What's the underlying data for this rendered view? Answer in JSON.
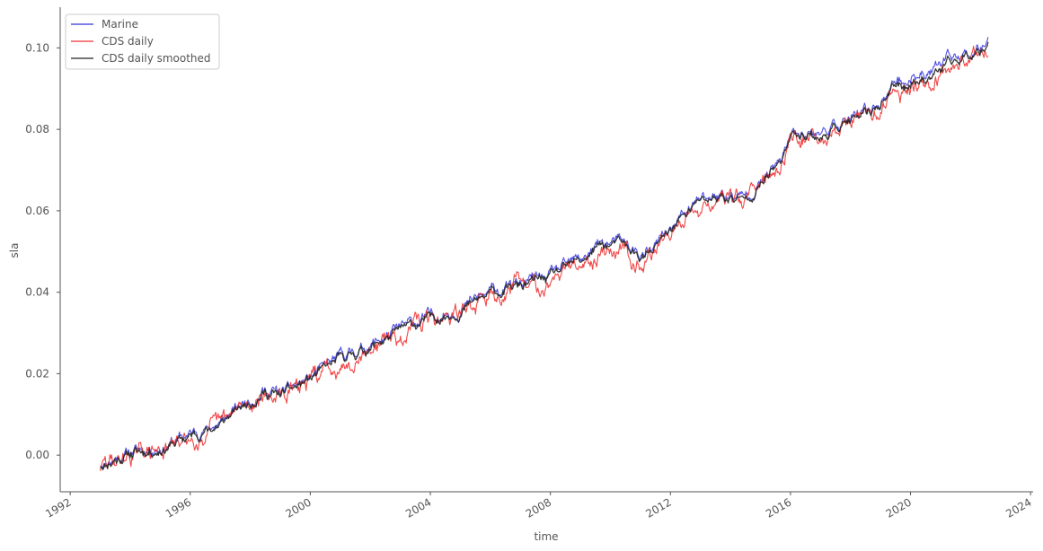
{
  "chart_data": {
    "type": "line",
    "xlabel": "time",
    "ylabel": "sla",
    "xlim": [
      "1991-09-01",
      "2024-02-01"
    ],
    "ylim": [
      -0.009,
      0.11
    ],
    "x_ticks": [
      "1992",
      "1996",
      "2000",
      "2004",
      "2008",
      "2012",
      "2016",
      "2020",
      "2024"
    ],
    "y_ticks": [
      "0.00",
      "0.02",
      "0.04",
      "0.06",
      "0.08",
      "0.10"
    ],
    "grid": false,
    "legend_position": "top-left",
    "series_x": [
      "1993-01-01",
      "1994-01-01",
      "1995-01-01",
      "1996-01-01",
      "1997-01-01",
      "1997-09-01",
      "1998-06-01",
      "1999-01-01",
      "2000-01-01",
      "2001-01-01",
      "2002-01-01",
      "2003-01-01",
      "2004-01-01",
      "2005-01-01",
      "2006-01-01",
      "2007-01-01",
      "2008-01-01",
      "2009-01-01",
      "2009-09-01",
      "2010-06-01",
      "2011-01-01",
      "2011-06-01",
      "2012-01-01",
      "2013-01-01",
      "2013-09-01",
      "2014-06-01",
      "2015-01-01",
      "2015-09-01",
      "2016-01-01",
      "2016-09-01",
      "2017-01-01",
      "2017-09-01",
      "2018-06-01",
      "2019-01-01",
      "2019-06-01",
      "2020-01-01",
      "2021-01-01",
      "2022-01-01",
      "2022-08-01"
    ],
    "series": [
      {
        "name": "Marine",
        "color": "#3333dd",
        "values": [
          -0.002,
          0.001,
          0.002,
          0.005,
          0.008,
          0.012,
          0.016,
          0.015,
          0.019,
          0.024,
          0.027,
          0.031,
          0.034,
          0.036,
          0.04,
          0.042,
          0.044,
          0.048,
          0.052,
          0.052,
          0.049,
          0.05,
          0.056,
          0.063,
          0.064,
          0.063,
          0.067,
          0.072,
          0.079,
          0.08,
          0.079,
          0.082,
          0.083,
          0.087,
          0.091,
          0.093,
          0.096,
          0.099,
          0.103
        ]
      },
      {
        "name": "CDS daily",
        "color": "#ee3333",
        "values": [
          -0.003,
          0.0,
          0.001,
          0.004,
          0.007,
          0.011,
          0.015,
          0.014,
          0.018,
          0.023,
          0.026,
          0.03,
          0.033,
          0.035,
          0.039,
          0.041,
          0.043,
          0.047,
          0.051,
          0.051,
          0.048,
          0.049,
          0.055,
          0.062,
          0.063,
          0.062,
          0.066,
          0.071,
          0.078,
          0.079,
          0.077,
          0.081,
          0.082,
          0.086,
          0.09,
          0.091,
          0.094,
          0.098,
          0.101
        ]
      },
      {
        "name": "CDS daily smoothed",
        "color": "#222222",
        "values": [
          -0.0025,
          0.0005,
          0.0015,
          0.0045,
          0.0075,
          0.0115,
          0.0155,
          0.0145,
          0.0185,
          0.0235,
          0.0265,
          0.0305,
          0.0335,
          0.0355,
          0.0395,
          0.0415,
          0.0435,
          0.0475,
          0.0515,
          0.0515,
          0.0485,
          0.0495,
          0.0555,
          0.0625,
          0.0635,
          0.0625,
          0.0665,
          0.0715,
          0.0785,
          0.0795,
          0.0775,
          0.0815,
          0.0825,
          0.0865,
          0.0905,
          0.0915,
          0.0945,
          0.0985,
          0.1015
        ]
      }
    ]
  }
}
